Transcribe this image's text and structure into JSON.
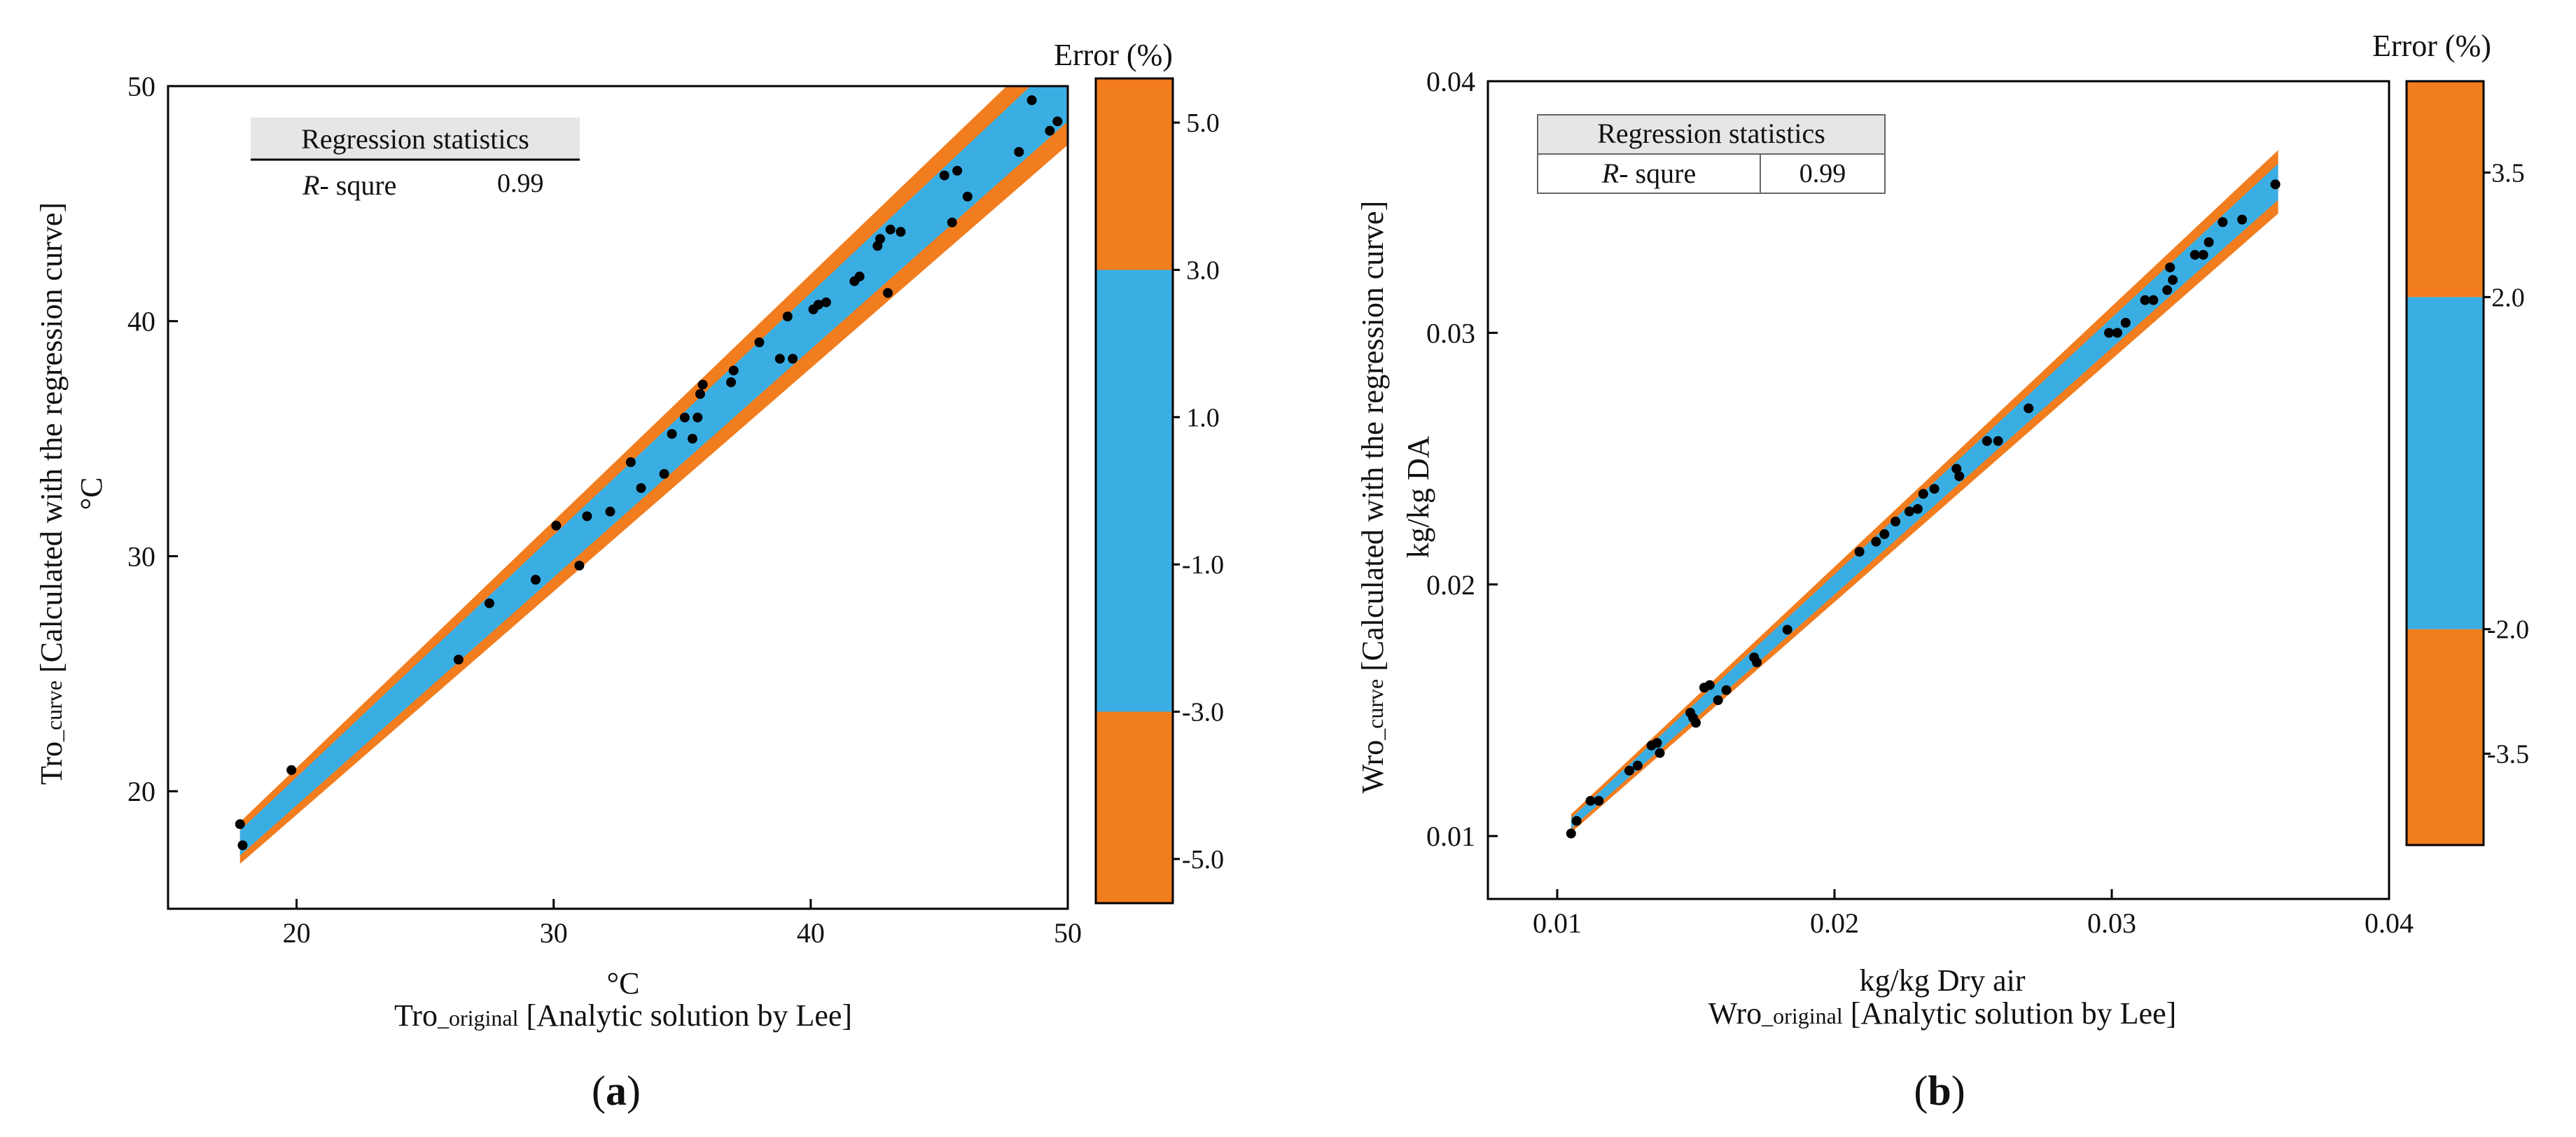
{
  "chart_data": [
    {
      "panel_label": "(a)",
      "type": "scatter",
      "title": "",
      "xlabel_unit": "°C",
      "xlabel_main": "Tro",
      "xlabel_sub": "_original",
      "xlabel_rest": "  [Analytic solution by Lee]",
      "ylabel_unit": "°C",
      "ylabel_main": "Tro",
      "ylabel_sub": "_curve",
      "ylabel_rest": " [Calculated with the regression curve]",
      "xlim": [
        15,
        50
      ],
      "ylim": [
        15,
        50
      ],
      "xticks": [
        20,
        30,
        40,
        50
      ],
      "yticks": [
        20,
        30,
        40,
        50
      ],
      "xtick_labels": [
        "20",
        "30",
        "40",
        "50"
      ],
      "ytick_labels": [
        "20",
        "30",
        "40",
        "50"
      ],
      "legend_box": {
        "header": "Regression statistics",
        "label_italic": "R",
        "label_rest": "- squre",
        "value": "0.99"
      },
      "error_bands": [
        {
          "name": "±5.0 %",
          "pct": 5.0,
          "color": "#F27D1E"
        },
        {
          "name": "±3.0 %",
          "pct": 3.0,
          "color": "#3AAEE3"
        }
      ],
      "band_x_range": [
        17.8,
        50
      ],
      "points": [
        [
          17.8,
          18.6
        ],
        [
          17.9,
          17.7
        ],
        [
          19.8,
          20.9
        ],
        [
          26.3,
          25.6
        ],
        [
          27.5,
          28.0
        ],
        [
          29.3,
          29.0
        ],
        [
          30.1,
          31.3
        ],
        [
          31.0,
          29.6
        ],
        [
          31.3,
          31.7
        ],
        [
          32.2,
          31.9
        ],
        [
          33.0,
          34.0
        ],
        [
          33.4,
          32.9
        ],
        [
          34.3,
          33.5
        ],
        [
          34.6,
          35.2
        ],
        [
          35.1,
          35.9
        ],
        [
          35.4,
          35.0
        ],
        [
          35.6,
          35.9
        ],
        [
          35.7,
          36.9
        ],
        [
          35.8,
          37.3
        ],
        [
          36.9,
          37.4
        ],
        [
          37.0,
          37.9
        ],
        [
          38.0,
          39.1
        ],
        [
          38.8,
          38.4
        ],
        [
          39.1,
          40.2
        ],
        [
          39.3,
          38.4
        ],
        [
          40.1,
          40.5
        ],
        [
          40.3,
          40.7
        ],
        [
          40.6,
          40.8
        ],
        [
          41.7,
          41.7
        ],
        [
          41.9,
          41.9
        ],
        [
          42.6,
          43.2
        ],
        [
          42.7,
          43.5
        ],
        [
          43.0,
          41.2
        ],
        [
          43.1,
          43.9
        ],
        [
          43.5,
          43.8
        ],
        [
          45.2,
          46.2
        ],
        [
          45.5,
          44.2
        ],
        [
          45.7,
          46.4
        ],
        [
          46.1,
          45.3
        ],
        [
          48.1,
          47.2
        ],
        [
          48.6,
          49.4
        ],
        [
          49.3,
          48.1
        ],
        [
          49.6,
          48.5
        ]
      ],
      "colorbar": {
        "title": "Error (%)",
        "range": [
          -5.6,
          5.6
        ],
        "segments": [
          {
            "from": -5.6,
            "to": -3.0,
            "color": "#F27D1E"
          },
          {
            "from": -3.0,
            "to": 3.0,
            "color": "#3AAEE3"
          },
          {
            "from": 3.0,
            "to": 5.6,
            "color": "#F27D1E"
          }
        ],
        "ticks": [
          5.0,
          3.0,
          1.0,
          -1.0,
          -3.0,
          -5.0
        ],
        "tick_labels": [
          "5.0",
          "3.0",
          "1.0",
          "-1.0",
          "-3.0",
          "-5.0"
        ]
      }
    },
    {
      "panel_label": "(b)",
      "type": "scatter",
      "title": "",
      "xlabel_unit": "kg/kg Dry air",
      "xlabel_main": "Wro",
      "xlabel_sub": "_original",
      "xlabel_rest": "  [Analytic solution by Lee]",
      "ylabel_unit": "kg/kg DA",
      "ylabel_main": "Wro",
      "ylabel_sub": "_curve",
      "ylabel_rest": " [Calculated with the regression curve]",
      "xlim": [
        0.0075,
        0.04
      ],
      "ylim": [
        0.0075,
        0.04
      ],
      "xticks": [
        0.01,
        0.02,
        0.03,
        0.04
      ],
      "yticks": [
        0.01,
        0.02,
        0.03,
        0.04
      ],
      "xtick_labels": [
        "0.01",
        "0.02",
        "0.03",
        "0.04"
      ],
      "ytick_labels": [
        "0.01",
        "0.02",
        "0.03",
        "0.04"
      ],
      "legend_box": {
        "header": "Regression statistics",
        "label_italic": "R",
        "label_rest": "- squre",
        "value": "0.99"
      },
      "error_bands": [
        {
          "name": "±3.5 %",
          "pct": 3.5,
          "color": "#F27D1E"
        },
        {
          "name": "±2.0 %",
          "pct": 2.0,
          "color": "#3AAEE3"
        }
      ],
      "band_x_range": [
        0.0105,
        0.036
      ],
      "points": [
        [
          0.0105,
          0.0101
        ],
        [
          0.0107,
          0.0106
        ],
        [
          0.0112,
          0.0114
        ],
        [
          0.0115,
          0.0114
        ],
        [
          0.0126,
          0.0126
        ],
        [
          0.0129,
          0.0128
        ],
        [
          0.0134,
          0.0136
        ],
        [
          0.0136,
          0.0137
        ],
        [
          0.0137,
          0.0133
        ],
        [
          0.0148,
          0.0149
        ],
        [
          0.0149,
          0.0147
        ],
        [
          0.015,
          0.0145
        ],
        [
          0.0153,
          0.0159
        ],
        [
          0.0155,
          0.016
        ],
        [
          0.0158,
          0.0154
        ],
        [
          0.0161,
          0.0158
        ],
        [
          0.0171,
          0.0171
        ],
        [
          0.0172,
          0.0169
        ],
        [
          0.0183,
          0.0182
        ],
        [
          0.0209,
          0.0213
        ],
        [
          0.0215,
          0.0217
        ],
        [
          0.0218,
          0.022
        ],
        [
          0.0222,
          0.0225
        ],
        [
          0.0227,
          0.0229
        ],
        [
          0.023,
          0.023
        ],
        [
          0.0232,
          0.0236
        ],
        [
          0.0236,
          0.0238
        ],
        [
          0.0244,
          0.0246
        ],
        [
          0.0245,
          0.0243
        ],
        [
          0.0255,
          0.0257
        ],
        [
          0.0259,
          0.0257
        ],
        [
          0.027,
          0.027
        ],
        [
          0.0299,
          0.03
        ],
        [
          0.0302,
          0.03
        ],
        [
          0.0305,
          0.0304
        ],
        [
          0.0312,
          0.0313
        ],
        [
          0.0315,
          0.0313
        ],
        [
          0.032,
          0.0317
        ],
        [
          0.0321,
          0.0326
        ],
        [
          0.0322,
          0.0321
        ],
        [
          0.033,
          0.0331
        ],
        [
          0.0333,
          0.0331
        ],
        [
          0.0335,
          0.0336
        ],
        [
          0.034,
          0.0344
        ],
        [
          0.0347,
          0.0345
        ],
        [
          0.0359,
          0.0359
        ]
      ],
      "colorbar": {
        "title": "Error (%)",
        "range": [
          -4.6,
          4.6
        ],
        "segments": [
          {
            "from": -4.6,
            "to": -2.0,
            "color": "#F27D1E"
          },
          {
            "from": -2.0,
            "to": 2.0,
            "color": "#3AAEE3"
          },
          {
            "from": 2.0,
            "to": 4.6,
            "color": "#F27D1E"
          }
        ],
        "ticks": [
          3.5,
          2.0,
          -2.0,
          -3.5
        ],
        "tick_labels": [
          "3.5",
          "2.0",
          "-2.0",
          "-3.5"
        ]
      }
    }
  ]
}
